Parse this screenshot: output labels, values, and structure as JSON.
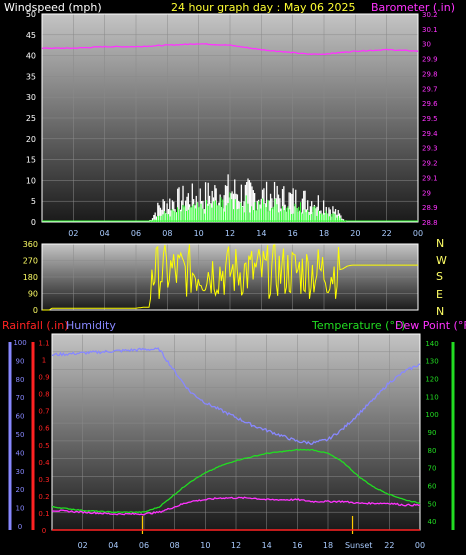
{
  "header": {
    "left": "Windspeed (mph)",
    "center": "24 hour graph day : May 06 2025",
    "right": "Barometer (.in)"
  },
  "lower_header": {
    "rain": "Rainfall (.in)",
    "humidity": "Humidity",
    "temperature": "Temperature (°F)",
    "dewpoint": "Dew Point (°F)"
  },
  "compass": [
    "N",
    "W",
    "S",
    "E",
    "N"
  ],
  "sunset_label": "Sunset",
  "colors": {
    "background": "#000000",
    "barometer": "#ff33ff",
    "wind_gust": "#ffffff",
    "wind_avg": "#33ff33",
    "direction": "#ffff00",
    "rain": "#ff2222",
    "humidity": "#8888ff",
    "temperature": "#22dd22",
    "dewpoint": "#ff33ff",
    "time_axis": "#aaccff"
  },
  "chart_data": [
    {
      "type": "line",
      "title": "24 hour graph day : May 06 2025",
      "x_ticks": [
        "02",
        "04",
        "06",
        "08",
        "10",
        "12",
        "14",
        "16",
        "18",
        "20",
        "22",
        "00"
      ],
      "y_left_label": "Windspeed (mph)",
      "y_left_ticks": [
        0,
        5,
        10,
        15,
        20,
        25,
        30,
        35,
        40,
        45,
        50
      ],
      "ylim_left": [
        0,
        50
      ],
      "y_right_label": "Barometer (.in)",
      "y_right_ticks": [
        "28.8",
        "28.9",
        "29",
        "29.1",
        "29.2",
        "29.3",
        "29.4",
        "29.5",
        "29.6",
        "29.7",
        "29.8",
        "29.9",
        "30",
        "30.1",
        "30.2"
      ],
      "ylim_right": [
        28.8,
        30.2
      ],
      "grid": true,
      "series": [
        {
          "name": "Barometer (.in)",
          "axis": "right",
          "x": [
            0,
            2,
            4,
            6,
            8,
            10,
            12,
            14,
            16,
            17,
            18,
            20,
            22,
            24
          ],
          "y": [
            29.97,
            29.97,
            29.98,
            29.98,
            29.99,
            30.0,
            29.99,
            29.96,
            29.94,
            29.93,
            29.93,
            29.95,
            29.96,
            29.95
          ]
        },
        {
          "axis": "left",
          "x": [
            0,
            6.8,
            7.5,
            8,
            9,
            10,
            11,
            12,
            13,
            14,
            15,
            16,
            17,
            18,
            18.8,
            19.5,
            24
          ],
          "y": [
            0,
            0,
            2,
            2.5,
            3.5,
            4,
            5,
            6,
            5.5,
            5,
            5,
            4.5,
            4,
            3,
            1.5,
            0,
            0
          ]
        },
        {
          "axis": "left",
          "x": [
            0,
            6.8,
            7.5,
            8,
            9,
            10,
            11,
            12,
            13,
            14,
            15,
            16,
            17,
            18,
            18.8,
            19.5,
            24
          ],
          "y": [
            0,
            0,
            5,
            6,
            7.5,
            8,
            9,
            10,
            9,
            8.5,
            8,
            7.5,
            7,
            6,
            3,
            0,
            0
          ]
        }
      ]
    },
    {
      "type": "line",
      "y_ticks": [
        0,
        90,
        180,
        270,
        360
      ],
      "ylim": [
        0,
        360
      ],
      "right_labels": [
        "N",
        "W",
        "S",
        "E",
        "N"
      ],
      "series": [
        {
          "x": [
            0,
            0.5,
            0.6,
            6,
            6.5,
            6.9,
            7.0,
            19.0,
            19.2,
            19.5,
            19.8,
            24
          ],
          "y": [
            0,
            0,
            10,
            10,
            15,
            15,
            220,
            220,
            225,
            240,
            245,
            245
          ]
        }
      ]
    },
    {
      "type": "line",
      "x_ticks": [
        "02",
        "04",
        "06",
        "08",
        "10",
        "12",
        "14",
        "16",
        "18",
        "Sunset",
        "22",
        "00"
      ],
      "y_rain_label": "Rainfall (.in)",
      "y_rain_ticks": [
        "0",
        "0.1",
        "0.2",
        "0.3",
        "0.4",
        "0.5",
        "0.6",
        "0.7",
        "0.8",
        "0.9",
        "1",
        "1.1"
      ],
      "ylim_rain": [
        0,
        1.15
      ],
      "y_humidity_label": "Humidity",
      "y_humidity_ticks": [
        0,
        10,
        20,
        30,
        40,
        50,
        60,
        70,
        80,
        90,
        100
      ],
      "ylim_humidity": [
        0,
        100
      ],
      "y_temp_label": "Temperature (°F)",
      "y_temp_ticks": [
        40,
        50,
        60,
        70,
        80,
        90,
        100,
        110,
        120,
        130,
        140
      ],
      "ylim_temp": [
        35,
        145
      ],
      "series": [
        {
          "name": "Humidity",
          "axis": "humidity",
          "x": [
            0,
            2,
            4,
            6,
            7,
            8,
            9,
            10,
            11,
            12,
            13,
            14,
            15,
            16,
            17,
            18,
            19,
            20,
            21,
            22,
            23,
            24
          ],
          "y": [
            93,
            94,
            95,
            96,
            96,
            84,
            73,
            67,
            63,
            59,
            55,
            52,
            49,
            46,
            45,
            47,
            53,
            61,
            69,
            78,
            84,
            88
          ]
        },
        {
          "name": "Temperature (°F)",
          "axis": "temp",
          "x": [
            0,
            2,
            4,
            6,
            7,
            8,
            9,
            10,
            11,
            12,
            13,
            14,
            15,
            16,
            17,
            18,
            19,
            20,
            21,
            22,
            23,
            24
          ],
          "y": [
            48,
            46,
            45,
            45,
            48,
            55,
            62,
            67,
            71,
            74,
            76,
            78,
            79,
            80,
            80,
            78,
            73,
            65,
            59,
            55,
            52,
            50
          ]
        },
        {
          "name": "Dew Point (°F)",
          "axis": "temp",
          "x": [
            0,
            2,
            4,
            6,
            7,
            8,
            9,
            10,
            11,
            12,
            13,
            14,
            15,
            16,
            17,
            18,
            19,
            20,
            21,
            22,
            23,
            24
          ],
          "y": [
            46,
            45,
            44,
            44,
            45,
            48,
            51,
            52,
            53,
            53,
            53,
            52,
            52,
            52,
            51,
            51,
            51,
            50,
            50,
            50,
            49,
            49
          ]
        },
        {
          "name": "Rainfall (.in)",
          "axis": "rain",
          "x": [
            0,
            24
          ],
          "y": [
            0,
            0
          ]
        }
      ]
    }
  ]
}
